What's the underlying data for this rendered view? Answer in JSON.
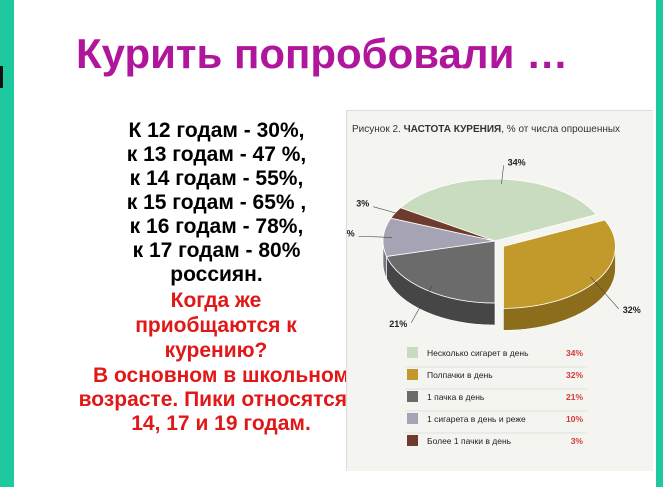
{
  "slide": {
    "title": "Курить попробовали …",
    "stats_lines": [
      "К 12 годам - 30%,",
      "к 13 годам - 47 %,",
      "к 14 годам - 55%,",
      "к 15 годам - 65% ,",
      "к 16 годам - 78%,",
      "к 17 годам - 80%",
      "россиян."
    ],
    "question": "Когда же приобщаются к курению?",
    "answer": "В основном в школьном возрасте. Пики относятся к 14, 17 и 19 годам."
  },
  "colors": {
    "background": "#1fc9a0",
    "title": "#b0169b",
    "highlight_text": "#e01818"
  },
  "chart_data": {
    "type": "pie",
    "figure_label": "Рисунок 2.",
    "title": "ЧАСТОТА КУРЕНИЯ",
    "subtitle": ", % от числа опрошенных",
    "slices": [
      {
        "label": "Несколько сигарет в день",
        "value": 34,
        "display": "34%",
        "color": "#c9dcc0",
        "side": "#9fb79a"
      },
      {
        "label": "Полпачки в день",
        "value": 32,
        "display": "32%",
        "color": "#c29a2c",
        "side": "#8c6d1c"
      },
      {
        "label": "1 пачка в день",
        "value": 21,
        "display": "21%",
        "color": "#6b6b6b",
        "side": "#464646"
      },
      {
        "label": "1 сигарета в день и реже",
        "value": 10,
        "display": "10%",
        "color": "#a6a4b4",
        "side": "#77757f"
      },
      {
        "label": "Более 1 пачки в день",
        "value": 3,
        "display": "3%",
        "color": "#6e3b2c",
        "side": "#4a271c"
      }
    ]
  }
}
